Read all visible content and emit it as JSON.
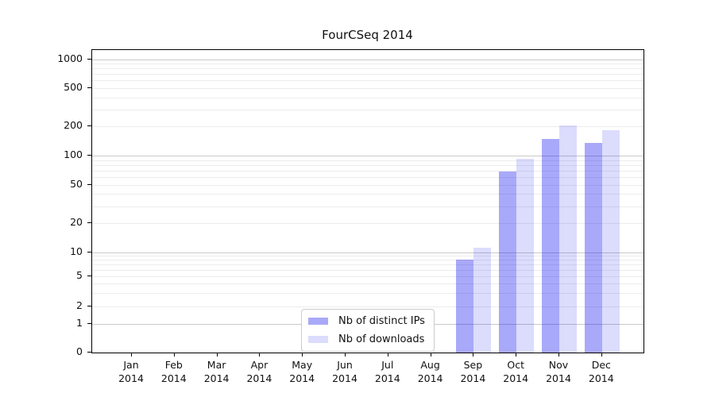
{
  "chart_data": {
    "type": "bar",
    "title": "FourCSeq 2014",
    "xlabel": "",
    "ylabel": "",
    "y_scale": "log-like with custom ticks (linear segment below 1)",
    "ylim": [
      0,
      1200
    ],
    "y_ticks": [
      0,
      1,
      2,
      5,
      10,
      20,
      50,
      100,
      200,
      500,
      1000
    ],
    "y_minor_ticks": [
      3,
      4,
      6,
      7,
      8,
      9,
      30,
      40,
      60,
      70,
      80,
      90,
      300,
      400,
      600,
      700,
      800,
      900
    ],
    "grid": "horizontal",
    "legend_position": "inside bottom-center",
    "categories": [
      {
        "month": "Jan",
        "year": "2014"
      },
      {
        "month": "Feb",
        "year": "2014"
      },
      {
        "month": "Mar",
        "year": "2014"
      },
      {
        "month": "Apr",
        "year": "2014"
      },
      {
        "month": "May",
        "year": "2014"
      },
      {
        "month": "Jun",
        "year": "2014"
      },
      {
        "month": "Jul",
        "year": "2014"
      },
      {
        "month": "Aug",
        "year": "2014"
      },
      {
        "month": "Sep",
        "year": "2014"
      },
      {
        "month": "Oct",
        "year": "2014"
      },
      {
        "month": "Nov",
        "year": "2014"
      },
      {
        "month": "Dec",
        "year": "2014"
      }
    ],
    "series": [
      {
        "name": "Nb of distinct IPs",
        "fill": "rgba(8,8,238,0.35)",
        "hex_on_white": "#a9a9f9",
        "values": [
          0,
          0,
          0,
          0,
          0,
          0,
          0,
          0,
          8,
          68,
          148,
          135
        ]
      },
      {
        "name": "Nb of downloads",
        "fill": "rgba(8,8,238,0.14)",
        "hex_on_white": "#dcdcfd",
        "values": [
          0,
          0,
          0,
          0,
          0,
          0,
          0,
          0,
          11,
          93,
          204,
          182
        ]
      }
    ],
    "colors": {
      "grid_major": "#c9c9c9",
      "grid_minor": "#ececec",
      "axis_frame": "#000000",
      "legend_border": "#cccccc",
      "background": "#ffffff"
    }
  }
}
